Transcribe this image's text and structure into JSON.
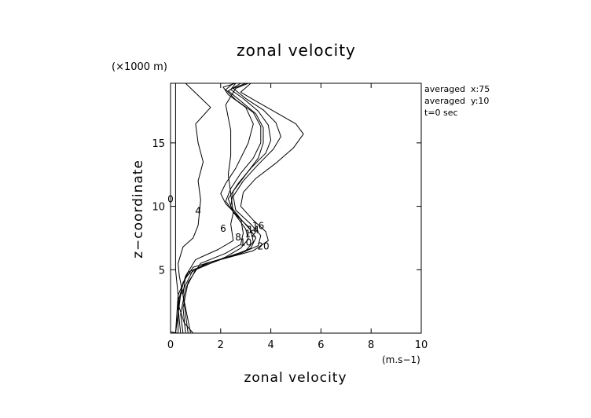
{
  "chart_data": {
    "type": "line",
    "title": "zonal velocity",
    "xlabel": "zonal velocity",
    "ylabel": "z−coordinate",
    "x_unit": "(m.s−1)",
    "y_unit": "(×1000 m)",
    "xlim": [
      0,
      10
    ],
    "ylim": [
      0,
      19.7
    ],
    "xticks": [
      0,
      2,
      4,
      6,
      8,
      10
    ],
    "yticks": [
      5,
      10,
      15
    ],
    "grid": false,
    "info_lines": [
      "averaged  x:75",
      "averaged  y:10",
      "t=0 sec"
    ],
    "series": [
      {
        "label": "0",
        "points": [
          [
            0.3,
            0.0
          ],
          [
            0.0,
            0.1
          ],
          [
            0.0,
            19.7
          ]
        ],
        "label_at": [
          0.0,
          10.3
        ]
      },
      {
        "label": "",
        "points": [
          [
            0.9,
            0.0
          ],
          [
            0.55,
            0.8
          ],
          [
            0.35,
            2.0
          ],
          [
            0.25,
            4.0
          ],
          [
            0.2,
            5.0
          ],
          [
            0.2,
            19.7
          ]
        ]
      },
      {
        "label": "4",
        "points": [
          [
            0.8,
            0.0
          ],
          [
            0.7,
            1.0
          ],
          [
            0.55,
            2.5
          ],
          [
            0.35,
            4.5
          ],
          [
            0.3,
            5.5
          ],
          [
            0.5,
            6.8
          ],
          [
            0.9,
            7.5
          ],
          [
            1.1,
            8.5
          ],
          [
            1.2,
            10.5
          ],
          [
            1.1,
            12.0
          ],
          [
            1.3,
            13.5
          ],
          [
            1.1,
            15.0
          ],
          [
            1.0,
            16.5
          ],
          [
            1.6,
            17.8
          ],
          [
            0.6,
            19.7
          ]
        ],
        "label_at": [
          1.1,
          9.4
        ]
      },
      {
        "label": "6",
        "points": [
          [
            0.7,
            0.0
          ],
          [
            0.6,
            1.5
          ],
          [
            0.5,
            3.0
          ],
          [
            0.6,
            4.5
          ],
          [
            1.0,
            5.8
          ],
          [
            1.9,
            6.6
          ],
          [
            2.5,
            7.3
          ],
          [
            2.4,
            8.6
          ],
          [
            2.5,
            9.5
          ],
          [
            2.4,
            11.0
          ],
          [
            2.3,
            12.5
          ],
          [
            2.4,
            14.0
          ],
          [
            2.4,
            16.0
          ],
          [
            2.2,
            18.0
          ],
          [
            2.6,
            19.3
          ],
          [
            3.1,
            19.7
          ]
        ],
        "label_at": [
          2.1,
          8.0
        ]
      },
      {
        "label": "8",
        "points": [
          [
            0.6,
            0.0
          ],
          [
            0.5,
            2.0
          ],
          [
            0.7,
            4.0
          ],
          [
            1.2,
            5.5
          ],
          [
            2.2,
            6.3
          ],
          [
            2.8,
            7.0
          ],
          [
            2.9,
            7.9
          ],
          [
            2.8,
            9.0
          ],
          [
            2.2,
            10.2
          ],
          [
            2.0,
            11.0
          ],
          [
            2.2,
            11.8
          ],
          [
            2.6,
            13.0
          ],
          [
            3.1,
            15.0
          ],
          [
            3.3,
            16.5
          ],
          [
            3.0,
            17.8
          ],
          [
            2.3,
            18.8
          ],
          [
            2.1,
            19.4
          ],
          [
            2.6,
            19.7
          ]
        ],
        "label_at": [
          2.7,
          7.3
        ]
      },
      {
        "label": "10",
        "points": [
          [
            0.5,
            0.0
          ],
          [
            0.4,
            1.5
          ],
          [
            0.6,
            3.5
          ],
          [
            1.0,
            5.0
          ],
          [
            2.2,
            6.0
          ],
          [
            2.8,
            6.7
          ],
          [
            3.1,
            7.4
          ],
          [
            3.0,
            8.2
          ],
          [
            2.6,
            9.3
          ],
          [
            2.2,
            10.4
          ],
          [
            2.4,
            11.4
          ],
          [
            2.8,
            12.6
          ],
          [
            3.3,
            13.8
          ],
          [
            3.6,
            15.0
          ],
          [
            3.6,
            16.3
          ],
          [
            3.3,
            17.4
          ],
          [
            2.6,
            18.4
          ],
          [
            2.2,
            19.2
          ],
          [
            2.5,
            19.7
          ]
        ],
        "label_at": [
          3.0,
          6.9
        ]
      },
      {
        "label": "12",
        "points": [
          [
            0.4,
            0.0
          ],
          [
            0.3,
            2.0
          ],
          [
            0.5,
            4.0
          ],
          [
            0.9,
            5.2
          ],
          [
            2.1,
            5.9
          ],
          [
            3.0,
            6.5
          ],
          [
            3.3,
            7.2
          ],
          [
            3.2,
            8.1
          ],
          [
            2.8,
            9.0
          ],
          [
            2.4,
            10.0
          ],
          [
            2.5,
            11.2
          ],
          [
            3.0,
            12.5
          ],
          [
            3.5,
            13.8
          ],
          [
            3.7,
            15.0
          ],
          [
            3.7,
            16.2
          ],
          [
            3.4,
            17.3
          ],
          [
            2.8,
            18.3
          ],
          [
            2.3,
            19.1
          ],
          [
            2.8,
            19.7
          ]
        ],
        "label_at": [
          3.2,
          7.6
        ]
      },
      {
        "label": "14",
        "points": [
          [
            0.3,
            0.0
          ],
          [
            0.3,
            2.5
          ],
          [
            0.6,
            4.5
          ],
          [
            1.4,
            5.5
          ],
          [
            2.5,
            6.1
          ],
          [
            3.2,
            6.7
          ],
          [
            3.4,
            7.5
          ],
          [
            3.1,
            8.4
          ],
          [
            2.5,
            9.5
          ],
          [
            2.3,
            10.6
          ],
          [
            2.7,
            11.8
          ],
          [
            3.2,
            13.0
          ],
          [
            3.8,
            14.2
          ],
          [
            4.0,
            15.2
          ],
          [
            3.9,
            16.4
          ],
          [
            3.5,
            17.5
          ],
          [
            2.9,
            18.5
          ],
          [
            2.4,
            19.2
          ],
          [
            2.6,
            19.7
          ]
        ],
        "label_at": [
          3.3,
          7.9
        ]
      },
      {
        "label": "16",
        "points": [
          [
            0.2,
            0.0
          ],
          [
            0.3,
            3.0
          ],
          [
            0.7,
            4.8
          ],
          [
            1.6,
            5.6
          ],
          [
            2.7,
            6.2
          ],
          [
            3.5,
            6.9
          ],
          [
            3.6,
            7.7
          ],
          [
            3.2,
            8.6
          ],
          [
            2.6,
            9.7
          ],
          [
            2.5,
            10.8
          ],
          [
            2.9,
            12.0
          ],
          [
            3.5,
            13.3
          ],
          [
            4.1,
            14.5
          ],
          [
            4.4,
            15.5
          ],
          [
            4.2,
            16.6
          ],
          [
            3.7,
            17.6
          ],
          [
            3.0,
            18.5
          ],
          [
            2.5,
            19.3
          ],
          [
            3.0,
            19.7
          ]
        ],
        "label_at": [
          3.5,
          8.2
        ]
      },
      {
        "label": "20",
        "points": [
          [
            0.2,
            0.0
          ],
          [
            0.4,
            3.0
          ],
          [
            0.9,
            5.0
          ],
          [
            2.0,
            5.8
          ],
          [
            3.3,
            6.5
          ],
          [
            3.9,
            7.3
          ],
          [
            3.8,
            8.0
          ],
          [
            3.3,
            8.9
          ],
          [
            2.8,
            10.0
          ],
          [
            2.9,
            11.1
          ],
          [
            3.4,
            12.2
          ],
          [
            4.2,
            13.4
          ],
          [
            4.9,
            14.6
          ],
          [
            5.3,
            15.7
          ],
          [
            5.0,
            16.5
          ],
          [
            4.2,
            17.4
          ],
          [
            3.4,
            18.3
          ],
          [
            2.8,
            19.0
          ],
          [
            3.2,
            19.7
          ]
        ],
        "label_at": [
          3.7,
          6.6
        ]
      }
    ]
  }
}
